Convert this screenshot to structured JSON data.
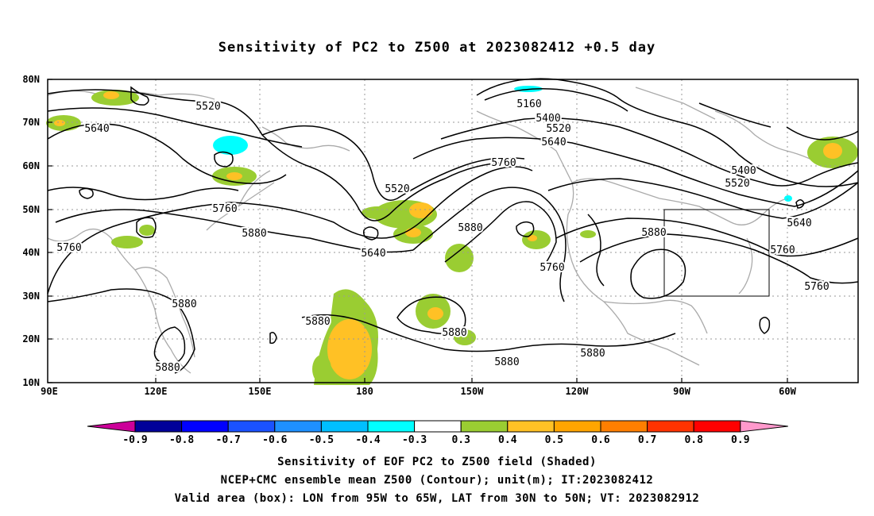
{
  "title": "Sensitivity of PC2 to Z500 at 2023082412 +0.5 day",
  "lat_ticks": [
    "80N",
    "70N",
    "60N",
    "50N",
    "40N",
    "30N",
    "20N",
    "10N"
  ],
  "lon_ticks": [
    "90E",
    "120E",
    "150E",
    "180",
    "150W",
    "120W",
    "90W",
    "60W"
  ],
  "contour_labels": [
    {
      "text": "5520",
      "id": "c5520-a"
    },
    {
      "text": "5640",
      "id": "c5640-a"
    },
    {
      "text": "5160",
      "id": "c5160"
    },
    {
      "text": "5400",
      "id": "c5400-a"
    },
    {
      "text": "5520",
      "id": "c5520-b"
    },
    {
      "text": "5640",
      "id": "c5640-b"
    },
    {
      "text": "5760",
      "id": "c5760-a"
    },
    {
      "text": "5520",
      "id": "c5520-c"
    },
    {
      "text": "5400",
      "id": "c5400-b"
    },
    {
      "text": "5520",
      "id": "c5520-d"
    },
    {
      "text": "5760",
      "id": "c5760-b"
    },
    {
      "text": "5880",
      "id": "c5880-a"
    },
    {
      "text": "5760",
      "id": "c5760-c"
    },
    {
      "text": "5640",
      "id": "c5640-c"
    },
    {
      "text": "5880",
      "id": "c5880-b"
    },
    {
      "text": "5640",
      "id": "c5640-d"
    },
    {
      "text": "5760",
      "id": "c5760-d"
    },
    {
      "text": "5880",
      "id": "c5880-c"
    },
    {
      "text": "5760",
      "id": "c5760-e"
    },
    {
      "text": "5760",
      "id": "c5760-f"
    },
    {
      "text": "5880",
      "id": "c5880-d"
    },
    {
      "text": "5880",
      "id": "c5880-e"
    },
    {
      "text": "5880",
      "id": "c5880-f"
    },
    {
      "text": "5880",
      "id": "c5880-g"
    },
    {
      "text": "5880",
      "id": "c5880-h"
    },
    {
      "text": "5880",
      "id": "c5880-i"
    },
    {
      "text": "5880",
      "id": "c5880-j"
    }
  ],
  "colorbar": {
    "labels": [
      "-0.9",
      "-0.8",
      "-0.7",
      "-0.6",
      "-0.5",
      "-0.4",
      "-0.3",
      "0.3",
      "0.4",
      "0.5",
      "0.6",
      "0.7",
      "0.8",
      "0.9"
    ],
    "colors": [
      "#000099",
      "#0000ff",
      "#1a52ff",
      "#1e90ff",
      "#00bfff",
      "#00ffff",
      "#ffffff",
      "#9acd32",
      "#ffc125",
      "#ffa500",
      "#ff7f00",
      "#ff3300",
      "#ff0000"
    ],
    "low_extend_color": "#cc0099",
    "high_extend_color": "#ff99cc"
  },
  "captions": {
    "line1": "Sensitivity of EOF PC2 to Z500 field (Shaded)",
    "line2": "NCEP+CMC ensemble mean Z500 (Contour); unit(m); IT:2023082412",
    "line3": "Valid area (box): LON from 95W to 65W, LAT from 30N to 50N; VT: 2023082912"
  },
  "valid_box": {
    "lon_min": -95,
    "lon_max": -65,
    "lat_min": 30,
    "lat_max": 50
  }
}
